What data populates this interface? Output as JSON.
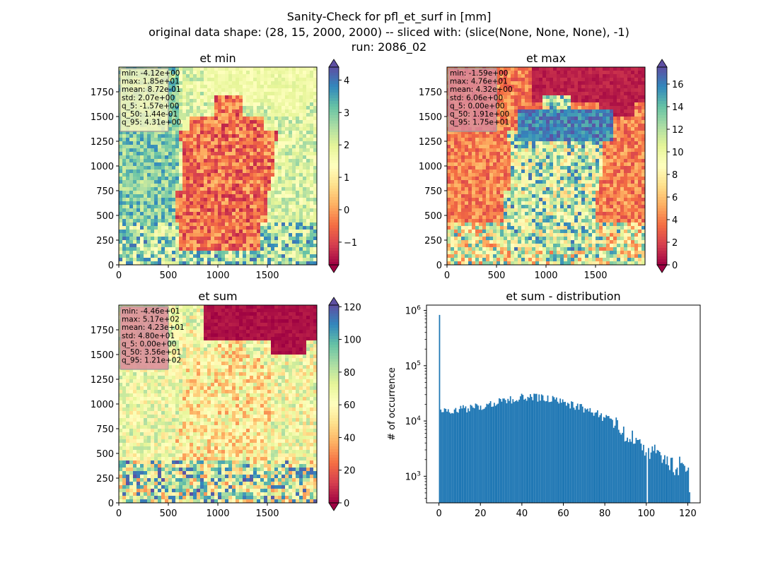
{
  "figure": {
    "title_lines": [
      "Sanity-Check for pfl_et_surf in [mm]",
      "original data shape: (28, 15, 2000, 2000) -- sliced with: (slice(None, None, None), -1)",
      "run: 2086_02"
    ]
  },
  "colormap": {
    "name": "Spectral",
    "stops": [
      "#9e0142",
      "#d53e4f",
      "#f46d43",
      "#fdae61",
      "#fee08b",
      "#ffffbf",
      "#e6f598",
      "#abdda4",
      "#66c2a5",
      "#3288bd",
      "#5e4fa2"
    ]
  },
  "chart_data": [
    {
      "type": "heatmap",
      "title": "et min",
      "xlim": [
        0,
        2000
      ],
      "ylim": [
        0,
        2000
      ],
      "x_ticks": [
        "0",
        "500",
        "1000",
        "1500"
      ],
      "y_ticks": [
        "0",
        "250",
        "500",
        "750",
        "1000",
        "1250",
        "1500",
        "1750"
      ],
      "colorbar": {
        "range": [
          -1.7,
          4.4
        ],
        "ticks": [
          "−1",
          "0",
          "1",
          "2",
          "3",
          "4"
        ],
        "extend": "both"
      },
      "stats_box_color": "#f6f6c0",
      "stats": [
        "min: -4.12e+00",
        "max: 1.85e+01",
        "mean: 8.72e-01",
        "std: 2.07e+00",
        "q_5: -1.57e+00",
        "q_50: 1.44e-01",
        "q_95: 4.31e+00"
      ]
    },
    {
      "type": "heatmap",
      "title": "et max",
      "xlim": [
        0,
        2000
      ],
      "ylim": [
        0,
        2000
      ],
      "x_ticks": [
        "0",
        "500",
        "1000",
        "1500"
      ],
      "y_ticks": [
        "0",
        "250",
        "500",
        "750",
        "1000",
        "1250",
        "1500",
        "1750"
      ],
      "colorbar": {
        "range": [
          0,
          17.5
        ],
        "ticks": [
          "0",
          "2",
          "4",
          "6",
          "8",
          "10",
          "12",
          "14",
          "16"
        ],
        "extend": "both"
      },
      "stats_box_color": "#d9899a",
      "stats": [
        "min: -1.59e+00",
        "max: 4.76e+01",
        "mean: 4.32e+00",
        "std: 6.06e+00",
        "q_5: 0.00e+00",
        "q_50: 1.91e+00",
        "q_95: 1.75e+01"
      ]
    },
    {
      "type": "heatmap",
      "title": "et sum",
      "xlim": [
        0,
        2000
      ],
      "ylim": [
        0,
        2000
      ],
      "x_ticks": [
        "0",
        "500",
        "1000",
        "1500"
      ],
      "y_ticks": [
        "0",
        "250",
        "500",
        "750",
        "1000",
        "1250",
        "1500",
        "1750"
      ],
      "colorbar": {
        "range": [
          0,
          121
        ],
        "ticks": [
          "0",
          "20",
          "40",
          "60",
          "80",
          "100",
          "120"
        ],
        "extend": "both"
      },
      "stats_box_color": "#d9899a",
      "stats": [
        "min: -4.46e+01",
        "max: 5.17e+02",
        "mean: 4.23e+01",
        "std: 4.80e+01",
        "q_5: 0.00e+00",
        "q_50: 3.56e+01",
        "q_95: 1.21e+02"
      ]
    },
    {
      "type": "bar",
      "title": "et sum - distribution",
      "ylabel": "# of occurrence",
      "y_scale": "log",
      "xlim": [
        -6,
        126
      ],
      "ylim": [
        330,
        1250000
      ],
      "x_ticks": [
        0,
        20,
        40,
        60,
        80,
        100,
        120
      ],
      "y_ticks": [
        {
          "value": 1000,
          "base": "10",
          "exp": "3"
        },
        {
          "value": 10000,
          "base": "10",
          "exp": "4"
        },
        {
          "value": 100000,
          "base": "10",
          "exp": "5"
        },
        {
          "value": 1000000,
          "base": "10",
          "exp": "6"
        }
      ],
      "bar_color": "#1f77b4",
      "bin_width": 0.6,
      "anchors": [
        [
          0,
          830000
        ],
        [
          0.6,
          15000
        ],
        [
          3,
          14500
        ],
        [
          6,
          14000
        ],
        [
          10,
          16000
        ],
        [
          15,
          17500
        ],
        [
          20,
          19000
        ],
        [
          25,
          20000
        ],
        [
          30,
          22500
        ],
        [
          35,
          25000
        ],
        [
          40,
          27500
        ],
        [
          45,
          26500
        ],
        [
          50,
          26000
        ],
        [
          55,
          24000
        ],
        [
          60,
          21000
        ],
        [
          65,
          19000
        ],
        [
          70,
          17000
        ],
        [
          75,
          14000
        ],
        [
          80,
          11500
        ],
        [
          85,
          8500
        ],
        [
          90,
          5500
        ],
        [
          95,
          4200
        ],
        [
          100,
          3200
        ],
        [
          105,
          2500
        ],
        [
          110,
          1900
        ],
        [
          115,
          1600
        ],
        [
          120,
          1500
        ],
        [
          121,
          430
        ]
      ]
    }
  ]
}
